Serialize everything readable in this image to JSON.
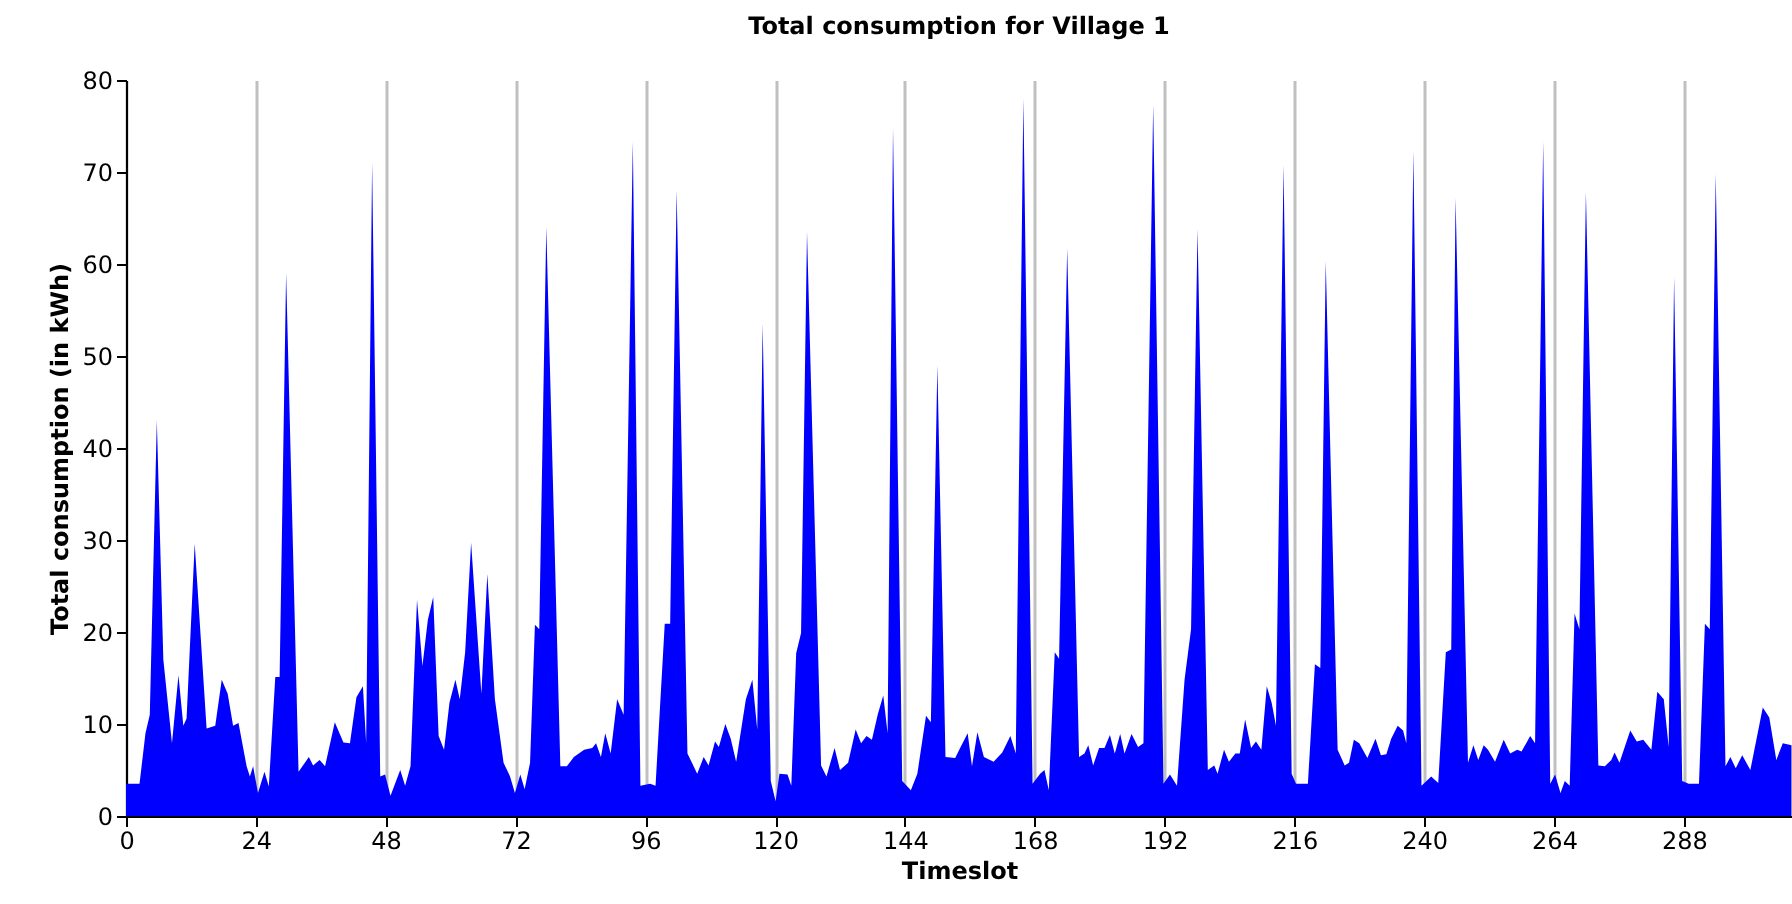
{
  "chart_data": {
    "type": "area",
    "title": "Total consumption for Village 1",
    "xlabel": "Timeslot",
    "ylabel": "Total consumption (in kWh)",
    "x": [
      0,
      2.5,
      3.6,
      4.4,
      5.7,
      6.9,
      8.5,
      9.7,
      10.6,
      11.2,
      12.7,
      14.9,
      16.5,
      17.7,
      18.8,
      19.8,
      20.8,
      22.3,
      22.9,
      23.5,
      24.4,
      25.6,
      26.4,
      27.6,
      28.4,
      29.6,
      31.9,
      33.8,
      34.6,
      35.8,
      36.8,
      38.6,
      40.2,
      41.4,
      42.6,
      43.8,
      44.4,
      45.5,
      47,
      47.9,
      48.9,
      50.7,
      51.6,
      52.6,
      53.8,
      54.8,
      55.8,
      56.8,
      57.8,
      58.8,
      59.8,
      60.9,
      61.7,
      62.7,
      63.8,
      65.7,
      66.8,
      68.2,
      69.8,
      71,
      71.9,
      72.9,
      73.7,
      74.7,
      75.6,
      76.4,
      77.7,
      80.3,
      81.5,
      82.8,
      84.7,
      86.2,
      86.9,
      87.8,
      88.6,
      89.6,
      90.8,
      92,
      93.7,
      95.1,
      96.9,
      97.9,
      99.6,
      100.6,
      101.8,
      103.8,
      105.6,
      106.8,
      107.7,
      108.9,
      109.6,
      110.8,
      111.8,
      112.8,
      114.6,
      115.8,
      116.7,
      117.7,
      119.2,
      120.1,
      120.8,
      122.3,
      123,
      123.9,
      124.8,
      125.9,
      128.5,
      129.5,
      131,
      132,
      133.5,
      134.9,
      135.9,
      136.9,
      137.9,
      139,
      140,
      140.8,
      141.8,
      143.5,
      145.1,
      146.3,
      147.9,
      148.8,
      150,
      151.5,
      153.3,
      154.3,
      155.6,
      156.4,
      157.4,
      158.6,
      160.4,
      162,
      163.5,
      164.5,
      165.9,
      167.6,
      169,
      169.8,
      170.6,
      171.7,
      172.5,
      174,
      176.2,
      177.2,
      177.9,
      178.8,
      179.9,
      180.9,
      181.9,
      182.8,
      183.8,
      184.6,
      185.9,
      187.1,
      188.1,
      189.9,
      191.8,
      193,
      194.3,
      195.7,
      196.9,
      198.1,
      200,
      201.2,
      201.8,
      203,
      203.9,
      205.1,
      205.9,
      206.9,
      208,
      208.9,
      209.9,
      210.9,
      211.8,
      212.6,
      214,
      215.5,
      216.3,
      218.5,
      219.8,
      220.8,
      221.8,
      224,
      225.3,
      226.1,
      227,
      228,
      229.5,
      231,
      232,
      233,
      233.9,
      235.1,
      236.1,
      236.7,
      238,
      239.5,
      241.3,
      242.6,
      244,
      245,
      245.8,
      248.1,
      249.1,
      250,
      251,
      251.8,
      253.1,
      254.7,
      255.9,
      257.2,
      258,
      259.6,
      260.5,
      262,
      263.3,
      264.2,
      265.2,
      266,
      266.9,
      267.8,
      268.7,
      269.9,
      272.2,
      273.4,
      274.6,
      275.2,
      276.1,
      278.1,
      279.3,
      280.5,
      282,
      283.1,
      284.3,
      285.2,
      286.2,
      287.7,
      288.9,
      290.8,
      291.9,
      292.8,
      293.9,
      295.7,
      296.6,
      297.6,
      298.8,
      300.3,
      302.6,
      303.8,
      305.1,
      306.3,
      307.9
    ],
    "values": [
      3.5,
      3.5,
      9,
      11,
      43,
      17,
      7.9,
      15.3,
      9.8,
      10.6,
      29.6,
      9.5,
      9.8,
      14.8,
      13.3,
      9.8,
      10.1,
      5.4,
      4.3,
      5.4,
      2.5,
      4.8,
      3.2,
      15.1,
      15.1,
      59,
      4.8,
      6.4,
      5.5,
      6.1,
      5.4,
      10.2,
      8,
      7.9,
      12.9,
      14.1,
      7.9,
      71,
      4.3,
      4.5,
      2.2,
      5,
      3.3,
      5.4,
      23.5,
      16.3,
      21.3,
      23.8,
      8.7,
      7.2,
      12.3,
      14.8,
      12.7,
      17.8,
      29.7,
      13.3,
      26.3,
      12.7,
      5.8,
      4.3,
      2.5,
      4.5,
      2.9,
      5.8,
      20.8,
      20.3,
      64,
      5.4,
      5.4,
      6.4,
      7.2,
      7.4,
      7.9,
      6.4,
      9,
      6.8,
      12.7,
      11,
      73.3,
      3.3,
      3.5,
      3.3,
      20.9,
      20.9,
      68,
      6.8,
      4.6,
      6.4,
      5.5,
      8.1,
      7.5,
      10,
      8.4,
      5.9,
      12.7,
      14.8,
      9.4,
      53.5,
      3.8,
      1.6,
      4.6,
      4.5,
      3.3,
      17.7,
      19.9,
      63.5,
      5.5,
      4.3,
      7.4,
      5,
      5.8,
      9.4,
      7.9,
      8.7,
      8.3,
      11.1,
      13.1,
      9,
      74.8,
      3.8,
      2.8,
      4.6,
      10.9,
      10.2,
      49,
      6.4,
      6.3,
      7.5,
      9,
      5.4,
      9.1,
      6.4,
      5.9,
      6.9,
      8.7,
      6.8,
      78,
      3.5,
      4.6,
      5,
      2.8,
      17.8,
      17.1,
      61.7,
      6.4,
      6.8,
      7.7,
      5.5,
      7.4,
      7.4,
      8.8,
      6.8,
      8.9,
      6.8,
      8.9,
      7.5,
      7.9,
      77.3,
      3.5,
      4.5,
      3.3,
      14.8,
      20.3,
      63.8,
      5,
      5.5,
      4.6,
      7.2,
      5.9,
      6.8,
      6.8,
      10.5,
      7.4,
      8.1,
      7.2,
      14.1,
      12.3,
      9.8,
      70.8,
      4.6,
      3.5,
      3.5,
      16.5,
      16.1,
      60.3,
      7.2,
      5.5,
      5.8,
      8.3,
      7.9,
      6.3,
      8.4,
      6.6,
      6.7,
      8.4,
      9.8,
      9.3,
      7.9,
      72.3,
      3.3,
      4.3,
      3.6,
      17.8,
      18.1,
      67.2,
      5.8,
      7.7,
      6.1,
      7.7,
      7.2,
      5.9,
      8.3,
      6.8,
      7.2,
      7,
      8.7,
      7.9,
      73.3,
      3.5,
      4.5,
      2.5,
      3.8,
      3.3,
      22,
      20.3,
      67.8,
      5.5,
      5.4,
      6.1,
      6.9,
      5.8,
      9.3,
      8.1,
      8.3,
      7.2,
      13.5,
      12.7,
      7.5,
      58.6,
      3.8,
      3.5,
      3.5,
      20.9,
      20.3,
      69.8,
      5.4,
      6.4,
      5.2,
      6.6,
      5,
      11.8,
      10.7,
      6.1,
      7.9,
      7.7
    ],
    "color": "#0000ff",
    "xlim": [
      0,
      308
    ],
    "xticks": [
      0,
      24,
      48,
      72,
      96,
      120,
      144,
      168,
      192,
      216,
      240,
      264,
      288
    ],
    "ylim": [
      0,
      80
    ],
    "yticks": [
      0,
      10,
      20,
      30,
      40,
      50,
      60,
      70,
      80
    ],
    "grid": "x"
  }
}
